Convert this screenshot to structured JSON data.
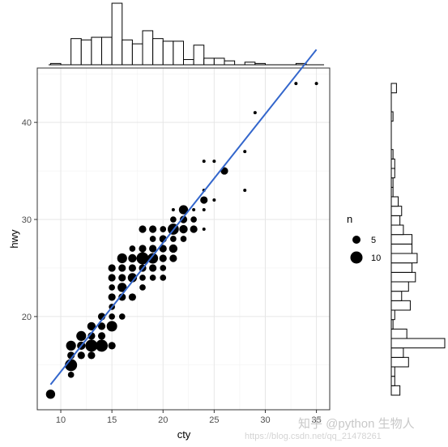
{
  "chart_data": {
    "type": "scatter",
    "xlabel": "cty",
    "ylabel": "hwy",
    "xlim": [
      7.7,
      36.3
    ],
    "ylim": [
      10.4,
      45.6
    ],
    "x_ticks": [
      10,
      15,
      20,
      25,
      30,
      35
    ],
    "x_tick_labels": [
      "10",
      "15",
      "20",
      "25",
      "30",
      "35"
    ],
    "y_ticks": [
      20,
      30,
      40
    ],
    "y_tick_labels": [
      "20",
      "30",
      "40"
    ],
    "grid": true,
    "marker_color": "#000000",
    "trend_color": "#3366cc",
    "legend": {
      "title": "n",
      "placement": "right",
      "entries": [
        {
          "label": "5",
          "size": 5
        },
        {
          "label": "10",
          "size": 10
        }
      ]
    },
    "trend_line": {
      "x": [
        9,
        35
      ],
      "y": [
        13.0,
        47.5
      ]
    },
    "points": [
      {
        "x": 9,
        "y": 12,
        "n": 5
      },
      {
        "x": 11,
        "y": 14,
        "n": 2
      },
      {
        "x": 11,
        "y": 15,
        "n": 10
      },
      {
        "x": 11,
        "y": 16,
        "n": 3
      },
      {
        "x": 11,
        "y": 17,
        "n": 6
      },
      {
        "x": 12,
        "y": 16,
        "n": 3
      },
      {
        "x": 12,
        "y": 17,
        "n": 4
      },
      {
        "x": 12,
        "y": 18,
        "n": 6
      },
      {
        "x": 13,
        "y": 16,
        "n": 3
      },
      {
        "x": 13,
        "y": 17,
        "n": 10
      },
      {
        "x": 13,
        "y": 18,
        "n": 3
      },
      {
        "x": 13,
        "y": 19,
        "n": 4
      },
      {
        "x": 14,
        "y": 17,
        "n": 10
      },
      {
        "x": 14,
        "y": 18,
        "n": 3
      },
      {
        "x": 14,
        "y": 19,
        "n": 3
      },
      {
        "x": 14,
        "y": 20,
        "n": 3
      },
      {
        "x": 15,
        "y": 17,
        "n": 3
      },
      {
        "x": 15,
        "y": 19,
        "n": 7
      },
      {
        "x": 15,
        "y": 20,
        "n": 2
      },
      {
        "x": 15,
        "y": 21,
        "n": 2
      },
      {
        "x": 15,
        "y": 22,
        "n": 3
      },
      {
        "x": 15,
        "y": 23,
        "n": 2
      },
      {
        "x": 15,
        "y": 24,
        "n": 3
      },
      {
        "x": 15,
        "y": 25,
        "n": 3
      },
      {
        "x": 16,
        "y": 20,
        "n": 2
      },
      {
        "x": 16,
        "y": 22,
        "n": 3
      },
      {
        "x": 16,
        "y": 23,
        "n": 5
      },
      {
        "x": 16,
        "y": 24,
        "n": 3
      },
      {
        "x": 16,
        "y": 25,
        "n": 3
      },
      {
        "x": 16,
        "y": 26,
        "n": 6
      },
      {
        "x": 17,
        "y": 22,
        "n": 3
      },
      {
        "x": 17,
        "y": 24,
        "n": 5
      },
      {
        "x": 17,
        "y": 25,
        "n": 3
      },
      {
        "x": 17,
        "y": 26,
        "n": 4
      },
      {
        "x": 17,
        "y": 27,
        "n": 2
      },
      {
        "x": 18,
        "y": 23,
        "n": 2
      },
      {
        "x": 18,
        "y": 24,
        "n": 2
      },
      {
        "x": 18,
        "y": 25,
        "n": 3
      },
      {
        "x": 18,
        "y": 26,
        "n": 10
      },
      {
        "x": 18,
        "y": 27,
        "n": 3
      },
      {
        "x": 18,
        "y": 29,
        "n": 3
      },
      {
        "x": 19,
        "y": 24,
        "n": 2
      },
      {
        "x": 19,
        "y": 25,
        "n": 3
      },
      {
        "x": 19,
        "y": 26,
        "n": 7
      },
      {
        "x": 19,
        "y": 27,
        "n": 3
      },
      {
        "x": 19,
        "y": 28,
        "n": 2
      },
      {
        "x": 19,
        "y": 29,
        "n": 3
      },
      {
        "x": 20,
        "y": 24,
        "n": 2
      },
      {
        "x": 20,
        "y": 25,
        "n": 2
      },
      {
        "x": 20,
        "y": 26,
        "n": 3
      },
      {
        "x": 20,
        "y": 27,
        "n": 3
      },
      {
        "x": 20,
        "y": 28,
        "n": 3
      },
      {
        "x": 20,
        "y": 29,
        "n": 2
      },
      {
        "x": 21,
        "y": 26,
        "n": 3
      },
      {
        "x": 21,
        "y": 27,
        "n": 4
      },
      {
        "x": 21,
        "y": 28,
        "n": 2
      },
      {
        "x": 21,
        "y": 29,
        "n": 8
      },
      {
        "x": 21,
        "y": 30,
        "n": 2
      },
      {
        "x": 21,
        "y": 31,
        "n": 1
      },
      {
        "x": 22,
        "y": 28,
        "n": 2
      },
      {
        "x": 22,
        "y": 29,
        "n": 4
      },
      {
        "x": 22,
        "y": 30,
        "n": 3
      },
      {
        "x": 22,
        "y": 31,
        "n": 5
      },
      {
        "x": 23,
        "y": 29,
        "n": 3
      },
      {
        "x": 23,
        "y": 30,
        "n": 2
      },
      {
        "x": 23,
        "y": 31,
        "n": 1
      },
      {
        "x": 24,
        "y": 29,
        "n": 1
      },
      {
        "x": 24,
        "y": 31,
        "n": 1
      },
      {
        "x": 24,
        "y": 32,
        "n": 3
      },
      {
        "x": 24,
        "y": 33,
        "n": 1
      },
      {
        "x": 24,
        "y": 36,
        "n": 1
      },
      {
        "x": 25,
        "y": 32,
        "n": 1
      },
      {
        "x": 25,
        "y": 36,
        "n": 1
      },
      {
        "x": 26,
        "y": 35,
        "n": 3
      },
      {
        "x": 28,
        "y": 33,
        "n": 1
      },
      {
        "x": 28,
        "y": 37,
        "n": 1
      },
      {
        "x": 29,
        "y": 41,
        "n": 1
      },
      {
        "x": 33,
        "y": 44,
        "n": 1
      },
      {
        "x": 35,
        "y": 44,
        "n": 1
      }
    ],
    "marginal_x": {
      "bin_edges": [
        9,
        10,
        11,
        12,
        13,
        14,
        15,
        16,
        17,
        18,
        19,
        20,
        21,
        22,
        23,
        24,
        25,
        26,
        27,
        28,
        29,
        30,
        31,
        32,
        33,
        34,
        35
      ],
      "counts": [
        1,
        0,
        20,
        19,
        21,
        21,
        47,
        19,
        16,
        26,
        20,
        18,
        18,
        4,
        15,
        5,
        5,
        3,
        0,
        2,
        1,
        0,
        0,
        0,
        1,
        0,
        1
      ]
    },
    "marginal_y": {
      "bin_edges": [
        12,
        13,
        14,
        15,
        16,
        17,
        18,
        19,
        20,
        21,
        22,
        23,
        24,
        25,
        26,
        27,
        28,
        29,
        30,
        31,
        32,
        33,
        34,
        35,
        36,
        37,
        38,
        39,
        40,
        41,
        42,
        43,
        44,
        45
      ],
      "counts": [
        5,
        2,
        2,
        10,
        7,
        31,
        9,
        1,
        2,
        11,
        6,
        10,
        14,
        12,
        15,
        12,
        12,
        7,
        5,
        6,
        4,
        1,
        1,
        2,
        2,
        1,
        0,
        0,
        0,
        1,
        0,
        0,
        3,
        0
      ]
    }
  },
  "watermark": {
    "text": "知乎 @python 生物人",
    "url": "https://blog.csdn.net/qq_21478261"
  }
}
